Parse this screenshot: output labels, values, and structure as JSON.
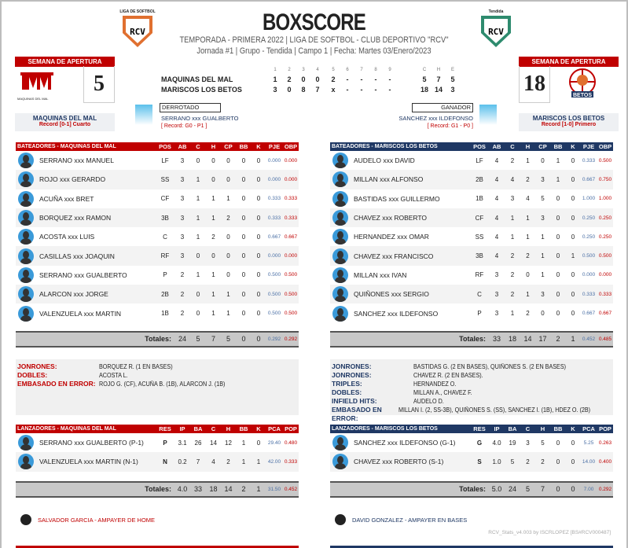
{
  "header": {
    "title": "BOXSCORE",
    "line1": "TEMPORADA - PRIMERA 2022 | LIGA DE SOFTBOL - CLUB DEPORTIVO \"RCV\"",
    "line2": "Jornada #1 | Grupo - Tendida | Campo 1 | Fecha: Martes 03/Enero/2023",
    "logo_left_caption": "LIGA DE SOFTBOL",
    "logo_right_caption": "Tendida",
    "logo_text": "RCV"
  },
  "colors": {
    "red": "#c00000",
    "navy": "#1f3864",
    "orange": "#e07030",
    "green": "#2e8b6e"
  },
  "away": {
    "semana": "SEMANA DE APERTURA",
    "score": "5",
    "name": "MAQUINAS DEL MAL",
    "record": "Record [0-1] Cuarto",
    "logo_text": "MAQUINAS DEL MAL"
  },
  "home": {
    "semana": "SEMANA DE APERTURA",
    "score": "18",
    "name": "MARISCOS LOS BETOS",
    "record": "Record [1-0] Primero",
    "logo_text": "BETOS"
  },
  "linescore": {
    "innings": [
      "1",
      "2",
      "3",
      "4",
      "5",
      "6",
      "7",
      "8",
      "9"
    ],
    "totals_headers": [
      "C",
      "H",
      "E"
    ],
    "rows": [
      {
        "team": "MAQUINAS DEL MAL",
        "runs": [
          "1",
          "2",
          "0",
          "0",
          "2",
          "-",
          "-",
          "-",
          "-"
        ],
        "totals": [
          "5",
          "7",
          "5"
        ]
      },
      {
        "team": "MARISCOS LOS BETOS",
        "runs": [
          "3",
          "0",
          "8",
          "7",
          "x",
          "-",
          "-",
          "-",
          "-"
        ],
        "totals": [
          "18",
          "14",
          "3"
        ]
      }
    ]
  },
  "loser": {
    "label": "DERROTADO",
    "name": "SERRANO xxx GUALBERTO",
    "record": "[ Record: G0 - P1 ]"
  },
  "winner": {
    "label": "GANADOR",
    "name": "SANCHEZ xxx ILDEFONSO",
    "record": "[ Record: G1 - P0 ]"
  },
  "bat_cols": [
    "POS",
    "AB",
    "C",
    "H",
    "CP",
    "BB",
    "K",
    "PJE",
    "OBP"
  ],
  "pit_cols": [
    "RES",
    "IP",
    "BA",
    "C",
    "H",
    "BB",
    "K",
    "PCA",
    "POP"
  ],
  "totals_label": "Totales:",
  "away_bat": {
    "title": "BATEADORES - MAQUINAS DEL MAL",
    "rows": [
      [
        "SERRANO xxx MANUEL",
        "LF",
        "3",
        "0",
        "0",
        "0",
        "0",
        "0",
        "0.000",
        "0.000"
      ],
      [
        "ROJO xxx GERARDO",
        "SS",
        "3",
        "1",
        "0",
        "0",
        "0",
        "0",
        "0.000",
        "0.000"
      ],
      [
        "ACUÑA xxx BRET",
        "CF",
        "3",
        "1",
        "1",
        "1",
        "0",
        "0",
        "0.333",
        "0.333"
      ],
      [
        "BORQUEZ xxx RAMON",
        "3B",
        "3",
        "1",
        "1",
        "2",
        "0",
        "0",
        "0.333",
        "0.333"
      ],
      [
        "ACOSTA xxx LUIS",
        "C",
        "3",
        "1",
        "2",
        "0",
        "0",
        "0",
        "0.667",
        "0.667"
      ],
      [
        "CASILLAS xxx JOAQUIN",
        "RF",
        "3",
        "0",
        "0",
        "0",
        "0",
        "0",
        "0.000",
        "0.000"
      ],
      [
        "SERRANO xxx GUALBERTO",
        "P",
        "2",
        "1",
        "1",
        "0",
        "0",
        "0",
        "0.500",
        "0.500"
      ],
      [
        "ALARCON xxx JORGE",
        "2B",
        "2",
        "0",
        "1",
        "1",
        "0",
        "0",
        "0.500",
        "0.500"
      ],
      [
        "VALENZUELA xxx MARTIN",
        "1B",
        "2",
        "0",
        "1",
        "1",
        "0",
        "0",
        "0.500",
        "0.500"
      ]
    ],
    "totals": [
      "",
      "24",
      "5",
      "7",
      "5",
      "0",
      "0",
      "0.292",
      "0.292"
    ]
  },
  "home_bat": {
    "title": "BATEADORES - MARISCOS LOS BETOS",
    "rows": [
      [
        "AUDELO xxx DAVID",
        "LF",
        "4",
        "2",
        "1",
        "0",
        "1",
        "0",
        "0.333",
        "0.500"
      ],
      [
        "MILLAN xxx ALFONSO",
        "2B",
        "4",
        "4",
        "2",
        "3",
        "1",
        "0",
        "0.667",
        "0.750"
      ],
      [
        "BASTIDAS xxx GUILLERMO",
        "1B",
        "4",
        "3",
        "4",
        "5",
        "0",
        "0",
        "1.000",
        "1.000"
      ],
      [
        "CHAVEZ xxx ROBERTO",
        "CF",
        "4",
        "1",
        "1",
        "3",
        "0",
        "0",
        "0.250",
        "0.250"
      ],
      [
        "HERNANDEZ xxx OMAR",
        "SS",
        "4",
        "1",
        "1",
        "1",
        "0",
        "0",
        "0.250",
        "0.250"
      ],
      [
        "CHAVEZ xxx FRANCISCO",
        "3B",
        "4",
        "2",
        "2",
        "1",
        "0",
        "1",
        "0.500",
        "0.500"
      ],
      [
        "MILLAN xxx IVAN",
        "RF",
        "3",
        "2",
        "0",
        "1",
        "0",
        "0",
        "0.000",
        "0.000"
      ],
      [
        "QUIÑONES xxx SERGIO",
        "C",
        "3",
        "2",
        "1",
        "3",
        "0",
        "0",
        "0.333",
        "0.333"
      ],
      [
        "SANCHEZ xxx ILDEFONSO",
        "P",
        "3",
        "1",
        "2",
        "0",
        "0",
        "0",
        "0.667",
        "0.667"
      ]
    ],
    "totals": [
      "",
      "33",
      "18",
      "14",
      "17",
      "2",
      "1",
      "0.452",
      "0.485"
    ]
  },
  "away_notes": [
    [
      "JONRONES:",
      "BORQUEZ R. (1 EN BASES)"
    ],
    [
      "DOBLES:",
      "ACOSTA L."
    ],
    [
      "EMBASADO EN ERROR:",
      "ROJO G. (CF), ACUÑA B. (1B), ALARCON J. (1B)"
    ]
  ],
  "home_notes": [
    [
      "JONRONES:",
      "BASTIDAS G. (2 EN BASES), QUIÑONES S. (2 EN BASES)"
    ],
    [
      "JONRONES:",
      "CHAVEZ R. (2 EN BASES)."
    ],
    [
      "TRIPLES:",
      "HERNANDEZ O."
    ],
    [
      "DOBLES:",
      "MILLAN A., CHAVEZ F."
    ],
    [
      "INFIELD HITS:",
      "AUDELO D."
    ],
    [
      "EMBASADO EN ERROR:",
      "MILLAN I. (2, SS-3B), QUIÑONES S. (SS), SANCHEZ I. (1B), HDEZ O. (2B)"
    ]
  ],
  "away_pit": {
    "title": "LANZADORES - MAQUINAS DEL MAL",
    "rows": [
      [
        "SERRANO xxx GUALBERTO (P-1)",
        "P",
        "3.1",
        "26",
        "14",
        "12",
        "1",
        "0",
        "29.40",
        "0.480"
      ],
      [
        "VALENZUELA xxx MARTIN (N-1)",
        "N",
        "0.2",
        "7",
        "4",
        "2",
        "1",
        "1",
        "42.00",
        "0.333"
      ]
    ],
    "totals": [
      "",
      "4.0",
      "33",
      "18",
      "14",
      "2",
      "1",
      "31.50",
      "0.452"
    ]
  },
  "home_pit": {
    "title": "LANZADORES - MARISCOS LOS BETOS",
    "rows": [
      [
        "SANCHEZ xxx ILDEFONSO (G-1)",
        "G",
        "4.0",
        "19",
        "3",
        "5",
        "0",
        "0",
        "5.25",
        "0.263"
      ],
      [
        "CHAVEZ xxx ROBERTO (S-1)",
        "S",
        "1.0",
        "5",
        "2",
        "2",
        "0",
        "0",
        "14.00",
        "0.400"
      ]
    ],
    "totals": [
      "",
      "5.0",
      "24",
      "5",
      "7",
      "0",
      "0",
      "7.00",
      "0.292"
    ]
  },
  "umpires": [
    "SALVADOR GARCIA - AMPAYER DE HOME",
    "DAVID GONZALEZ - AMPAYER EN BASES"
  ],
  "credit": "RCV_Stats_v4.003 by ISCRLOPEZ [BS#RCV000487]"
}
